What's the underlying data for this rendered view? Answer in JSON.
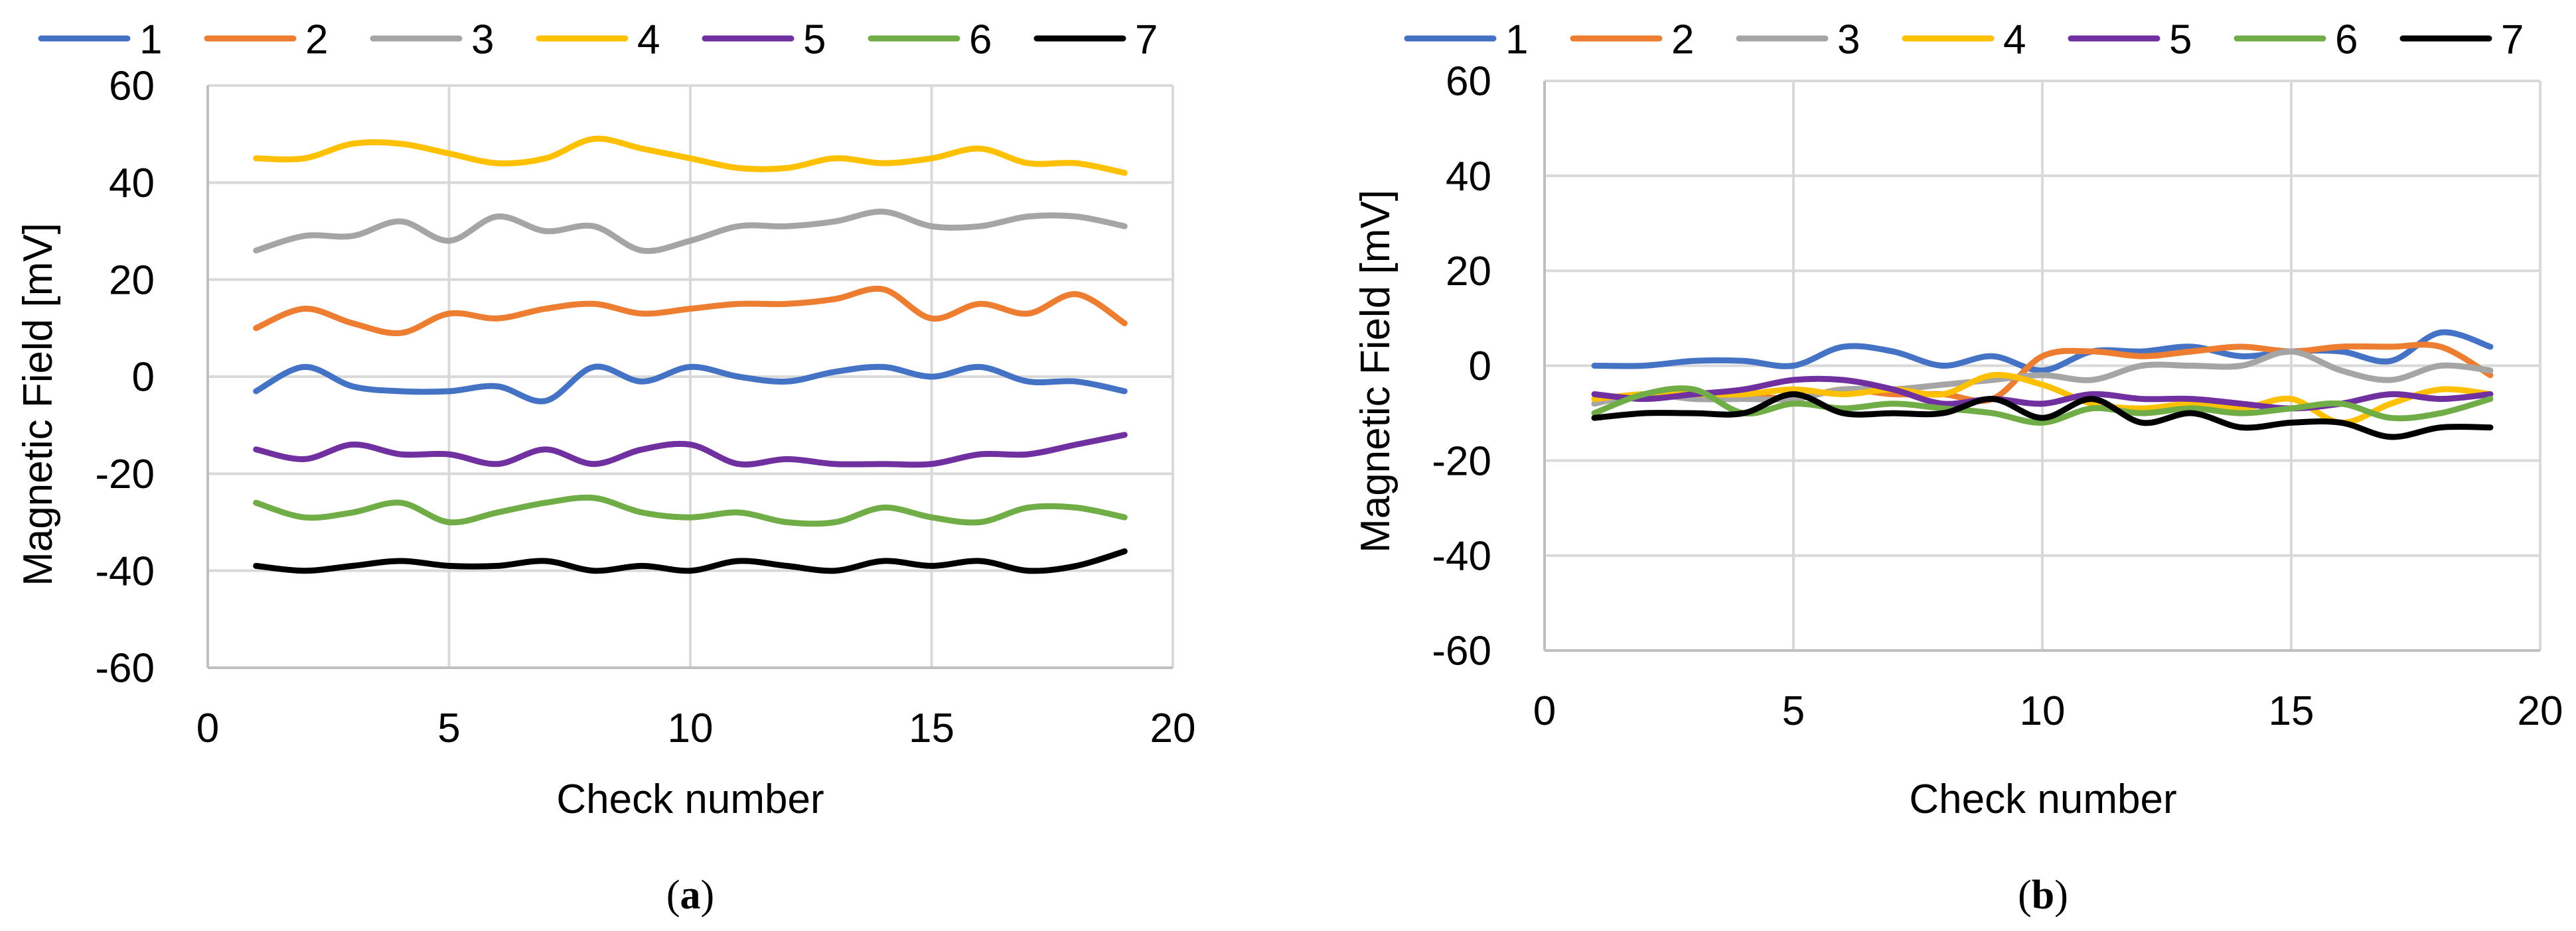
{
  "figure": {
    "panels": [
      {
        "label_open": "(",
        "label_letter": "a",
        "label_close": ")"
      },
      {
        "label_open": "(",
        "label_letter": "b",
        "label_close": ")"
      }
    ]
  },
  "colors": {
    "1": "#4472C4",
    "2": "#ED7D31",
    "3": "#A5A5A5",
    "4": "#FFC000",
    "5": "#7030A0",
    "6": "#70AD47",
    "7": "#000000",
    "grid": "#D9D9D9",
    "axis": "#000000"
  },
  "chart_data": [
    {
      "type": "line",
      "panel": "a",
      "title": "",
      "xlabel": "Check number",
      "ylabel": "Magnetic Field [mV]",
      "xlim": [
        0,
        20
      ],
      "ylim": [
        -60,
        60
      ],
      "xticks": [
        0,
        5,
        10,
        15,
        20
      ],
      "yticks": [
        -60,
        -40,
        -20,
        0,
        20,
        40,
        60
      ],
      "grid": true,
      "legend_position": "top",
      "x": [
        1,
        2,
        3,
        4,
        5,
        6,
        7,
        8,
        9,
        10,
        11,
        12,
        13,
        14,
        15,
        16,
        17,
        18,
        19
      ],
      "series": [
        {
          "name": "1",
          "values": [
            -3,
            2,
            -2,
            -3,
            -3,
            -2,
            -5,
            2,
            -1,
            2,
            0,
            -1,
            1,
            2,
            0,
            2,
            -1,
            -1,
            -3
          ]
        },
        {
          "name": "2",
          "values": [
            10,
            14,
            11,
            9,
            13,
            12,
            14,
            15,
            13,
            14,
            15,
            15,
            16,
            18,
            12,
            15,
            13,
            17,
            11
          ]
        },
        {
          "name": "3",
          "values": [
            26,
            29,
            29,
            32,
            28,
            33,
            30,
            31,
            26,
            28,
            31,
            31,
            32,
            34,
            31,
            31,
            33,
            33,
            31
          ]
        },
        {
          "name": "4",
          "values": [
            45,
            45,
            48,
            48,
            46,
            44,
            45,
            49,
            47,
            45,
            43,
            43,
            45,
            44,
            45,
            47,
            44,
            44,
            42
          ]
        },
        {
          "name": "5",
          "values": [
            -15,
            -17,
            -14,
            -16,
            -16,
            -18,
            -15,
            -18,
            -15,
            -14,
            -18,
            -17,
            -18,
            -18,
            -18,
            -16,
            -16,
            -14,
            -12
          ]
        },
        {
          "name": "6",
          "values": [
            -26,
            -29,
            -28,
            -26,
            -30,
            -28,
            -26,
            -25,
            -28,
            -29,
            -28,
            -30,
            -30,
            -27,
            -29,
            -30,
            -27,
            -27,
            -29
          ]
        },
        {
          "name": "7",
          "values": [
            -39,
            -40,
            -39,
            -38,
            -39,
            -39,
            -38,
            -40,
            -39,
            -40,
            -38,
            -39,
            -40,
            -38,
            -39,
            -38,
            -40,
            -39,
            -36
          ]
        }
      ]
    },
    {
      "type": "line",
      "panel": "b",
      "title": "",
      "xlabel": "Check number",
      "ylabel": "Magnetic Field [mV]",
      "xlim": [
        0,
        20
      ],
      "ylim": [
        -60,
        60
      ],
      "xticks": [
        0,
        5,
        10,
        15,
        20
      ],
      "yticks": [
        -60,
        -40,
        -20,
        0,
        20,
        40,
        60
      ],
      "grid": true,
      "legend_position": "top",
      "x": [
        1,
        2,
        3,
        4,
        5,
        6,
        7,
        8,
        9,
        10,
        11,
        12,
        13,
        14,
        15,
        16,
        17,
        18,
        19
      ],
      "series": [
        {
          "name": "1",
          "values": [
            0,
            0,
            1,
            1,
            0,
            4,
            3,
            0,
            2,
            -1,
            3,
            3,
            4,
            2,
            3,
            3,
            1,
            7,
            4
          ]
        },
        {
          "name": "2",
          "values": [
            -7,
            -6,
            -6,
            -6,
            -7,
            -5,
            -6,
            -6,
            -7,
            2,
            3,
            2,
            3,
            4,
            3,
            4,
            4,
            4,
            -2
          ]
        },
        {
          "name": "3",
          "values": [
            -8,
            -6,
            -7,
            -7,
            -7,
            -5,
            -5,
            -4,
            -3,
            -2,
            -3,
            0,
            0,
            0,
            3,
            -1,
            -3,
            0,
            -1
          ]
        },
        {
          "name": "4",
          "values": [
            -7,
            -6,
            -6,
            -6,
            -5,
            -6,
            -5,
            -6,
            -2,
            -4,
            -8,
            -9,
            -8,
            -9,
            -7,
            -12,
            -8,
            -5,
            -6
          ]
        },
        {
          "name": "5",
          "values": [
            -6,
            -7,
            -6,
            -5,
            -3,
            -3,
            -5,
            -8,
            -7,
            -8,
            -6,
            -7,
            -7,
            -8,
            -9,
            -8,
            -6,
            -7,
            -6
          ]
        },
        {
          "name": "6",
          "values": [
            -10,
            -6,
            -5,
            -10,
            -8,
            -9,
            -8,
            -9,
            -10,
            -12,
            -9,
            -10,
            -9,
            -10,
            -9,
            -8,
            -11,
            -10,
            -7
          ]
        },
        {
          "name": "7",
          "values": [
            -11,
            -10,
            -10,
            -10,
            -6,
            -10,
            -10,
            -10,
            -7,
            -11,
            -7,
            -12,
            -10,
            -13,
            -12,
            -12,
            -15,
            -13,
            -13
          ]
        }
      ]
    }
  ]
}
